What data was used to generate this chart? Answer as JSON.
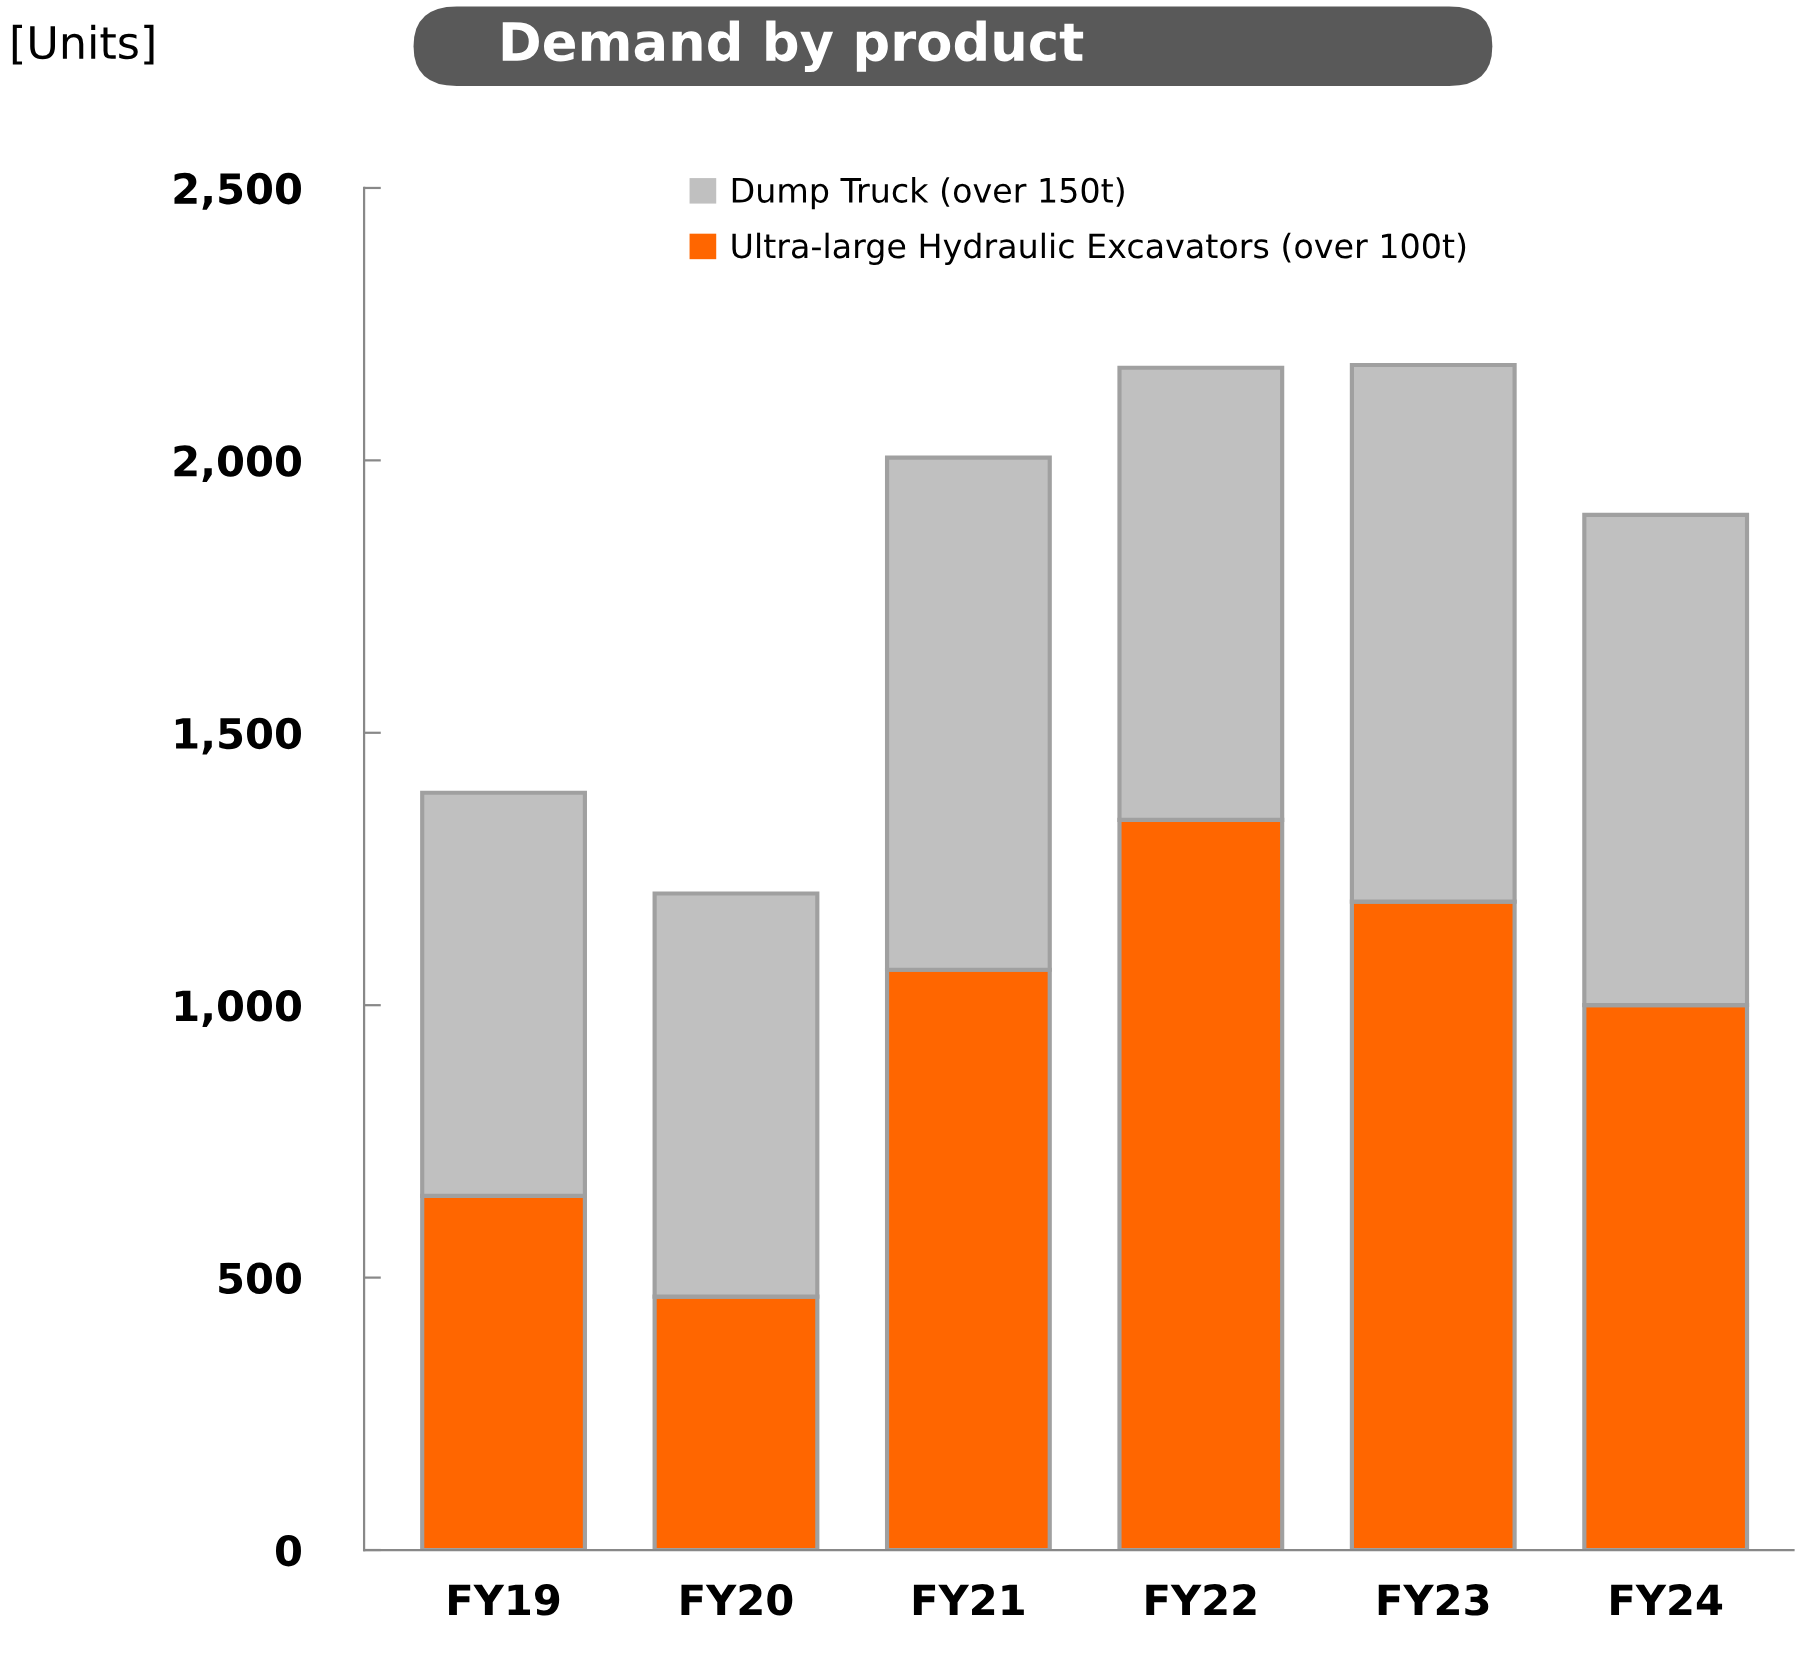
{
  "chart_data": {
    "type": "bar",
    "title": "Demand by product",
    "ylabel": "[Units]",
    "categories": [
      "FY19",
      "FY20",
      "FY21",
      "FY22",
      "FY23",
      "FY24"
    ],
    "series": [
      {
        "name": "Ultra-large Hydraulic Excavators (over 100t)",
        "color": "#ff6600",
        "values": [
          650,
          465,
          1065,
          1340,
          1190,
          1000
        ]
      },
      {
        "name": "Dump Truck (over 150t)",
        "color": "#c0c0c0",
        "values": [
          740,
          740,
          940,
          830,
          985,
          900
        ]
      }
    ],
    "stacked": true,
    "ylim": [
      0,
      2500
    ],
    "yticks": [
      {
        "value": 0,
        "label": "0"
      },
      {
        "value": 500,
        "label": "500"
      },
      {
        "value": 1000,
        "label": "1,000"
      },
      {
        "value": 1500,
        "label": "1,500"
      },
      {
        "value": 2000,
        "label": "2,000"
      },
      {
        "value": 2500,
        "label": "2,500"
      }
    ],
    "grid": false,
    "legend": "top"
  }
}
